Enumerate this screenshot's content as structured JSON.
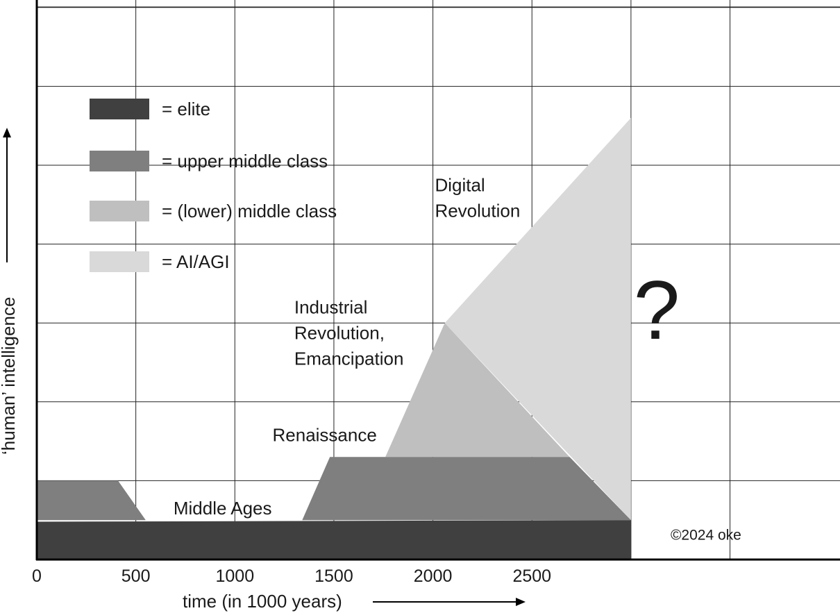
{
  "chart_data": {
    "type": "area",
    "title": "",
    "xlabel": "time (in 1000 years)",
    "ylabel": "‘human’ intelligence",
    "x_ticks": [
      "0",
      "500",
      "1000",
      "1500",
      "2000",
      "2500"
    ],
    "xlim": [
      0,
      3500
    ],
    "ylim": [
      0,
      7
    ],
    "grid": true,
    "legend_position": "top-left",
    "legend": [
      {
        "name": "= elite",
        "color": "#404040"
      },
      {
        "name": "= upper middle class",
        "color": "#7f7f7f"
      },
      {
        "name": "= (lower) middle class",
        "color": "#bfbfbf"
      },
      {
        "name": "= AI/AGI",
        "color": "#d9d9d9"
      }
    ],
    "series": [
      {
        "name": "AI/AGI",
        "color": "#d9d9d9",
        "points": [
          [
            2060,
            3
          ],
          [
            3000,
            5.6
          ],
          [
            3000,
            0.5
          ]
        ]
      },
      {
        "name": "(lower) middle class",
        "color": "#bfbfbf",
        "points": [
          [
            1760,
            1.3
          ],
          [
            2060,
            3
          ],
          [
            2690,
            1.3
          ]
        ]
      },
      {
        "name": "upper middle class",
        "color": "#7f7f7f",
        "points": [
          [
            0,
            1
          ],
          [
            410,
            1
          ],
          [
            550,
            0.5
          ],
          [
            1340,
            0.5
          ],
          [
            1480,
            1.3
          ],
          [
            2690,
            1.3
          ],
          [
            3000,
            0.5
          ],
          [
            0,
            0.5
          ]
        ]
      },
      {
        "name": "elite",
        "color": "#404040",
        "points": [
          [
            0,
            0
          ],
          [
            0,
            0.48
          ],
          [
            3000,
            0.5
          ],
          [
            3000,
            0
          ]
        ]
      }
    ],
    "annotations": [
      {
        "id": "middle_ages",
        "lines": [
          "Middle Ages"
        ],
        "x": 690,
        "y": 0.57
      },
      {
        "id": "renaissance",
        "lines": [
          "Renaissance"
        ],
        "x": 1190,
        "y": 1.5
      },
      {
        "id": "industrial",
        "lines": [
          "Industrial",
          "Revolution,",
          "Emancipation"
        ],
        "x": 1300,
        "y": 3.12
      },
      {
        "id": "digital",
        "lines": [
          "Digital",
          "Revolution"
        ],
        "x": 2010,
        "y": 4.67
      },
      {
        "id": "question",
        "lines": [
          "?"
        ],
        "x": 3130,
        "y": 2.8
      },
      {
        "id": "copyright",
        "lines": [
          "©2024 oke"
        ],
        "x": 3200,
        "y": 0.25
      }
    ]
  }
}
